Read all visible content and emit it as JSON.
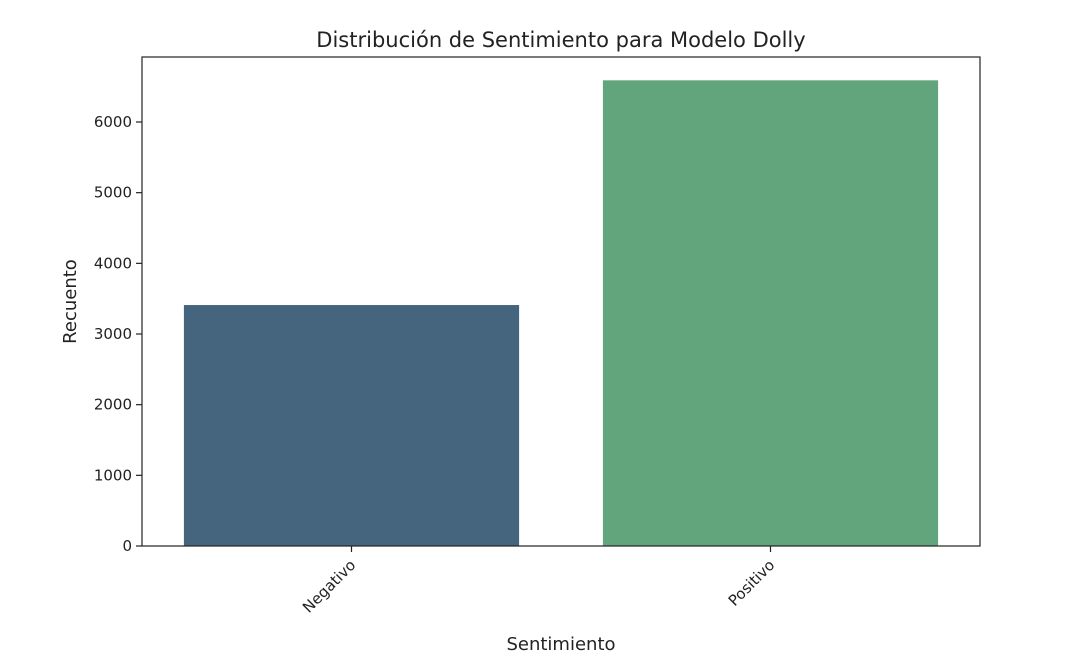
{
  "chart_data": {
    "type": "bar",
    "title": "Distribución de Sentimiento para Modelo Dolly",
    "xlabel": "Sentimiento",
    "ylabel": "Recuento",
    "categories": [
      "Negativo",
      "Positivo"
    ],
    "values": [
      3410,
      6590
    ],
    "colors": [
      "#45657e",
      "#62a57c"
    ],
    "ylim": [
      0,
      6920
    ],
    "yticks": [
      0,
      1000,
      2000,
      3000,
      4000,
      5000,
      6000
    ],
    "ytick_labels": [
      "0",
      "1000",
      "2000",
      "3000",
      "4000",
      "5000",
      "6000"
    ],
    "xtick_rotation": "45°",
    "grid": false,
    "legend": "none"
  }
}
